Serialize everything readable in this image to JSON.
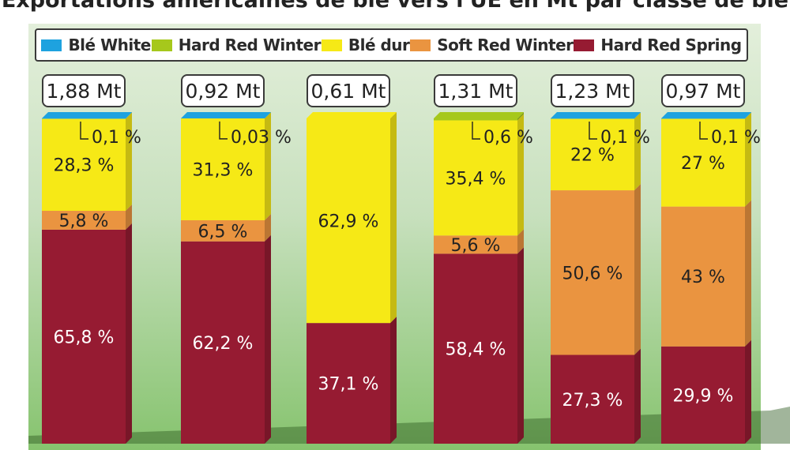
{
  "title": "Exportations américaines de blé vers l'UE en Mt par classe de blé",
  "colors": {
    "ble_white": "#1ea2df",
    "hard_red_winter": "#a6c81c",
    "ble_dur": "#f6e916",
    "soft_red_winter": "#ea9440",
    "hard_red_spring": "#961b32"
  },
  "chart_data": {
    "type": "bar",
    "stacked": true,
    "title": "Exportations américaines de blé vers l'UE en Mt par classe de blé",
    "legend": [
      "Blé White",
      "Hard Red Winter",
      "Blé dur",
      "Soft Red Winter",
      "Hard Red Spring"
    ],
    "legend_placement": "top",
    "unit": "%",
    "totals": [
      "1,88 Mt",
      "0,92 Mt",
      "0,61 Mt",
      "1,31 Mt",
      "1,23 Mt",
      "0,97 Mt"
    ],
    "series": [
      {
        "name": "Hard Red Spring",
        "color_key": "hard_red_spring",
        "values": [
          65.8,
          62.2,
          37.1,
          58.4,
          27.3,
          29.9
        ],
        "labels": [
          "65,8 %",
          "62,2 %",
          "37,1 %",
          "58,4 %",
          "27,3 %",
          "29,9 %"
        ]
      },
      {
        "name": "Soft Red Winter",
        "color_key": "soft_red_winter",
        "values": [
          5.8,
          6.5,
          0,
          5.6,
          50.6,
          43
        ],
        "labels": [
          "5,8 %",
          "6,5 %",
          "",
          "5,6 %",
          "50,6 %",
          "43 %"
        ]
      },
      {
        "name": "Blé dur",
        "color_key": "ble_dur",
        "values": [
          28.3,
          31.3,
          62.9,
          35.4,
          22,
          27
        ],
        "labels": [
          "28,3 %",
          "31,3 %",
          "62,9 %",
          "35,4 %",
          "22 %",
          "27 %"
        ]
      },
      {
        "name": "Hard Red Winter",
        "color_key": "hard_red_winter",
        "values": [
          0,
          0,
          0,
          0.6,
          0,
          0
        ],
        "labels": [
          "",
          "",
          "",
          "0,6 %",
          "",
          ""
        ]
      },
      {
        "name": "Blé White",
        "color_key": "ble_white",
        "values": [
          0.1,
          0.03,
          0,
          0,
          0.1,
          0.1
        ],
        "labels": [
          "0,1 %",
          "0,03 %",
          "",
          "",
          "0,1 %",
          "0,1 %"
        ]
      }
    ]
  }
}
